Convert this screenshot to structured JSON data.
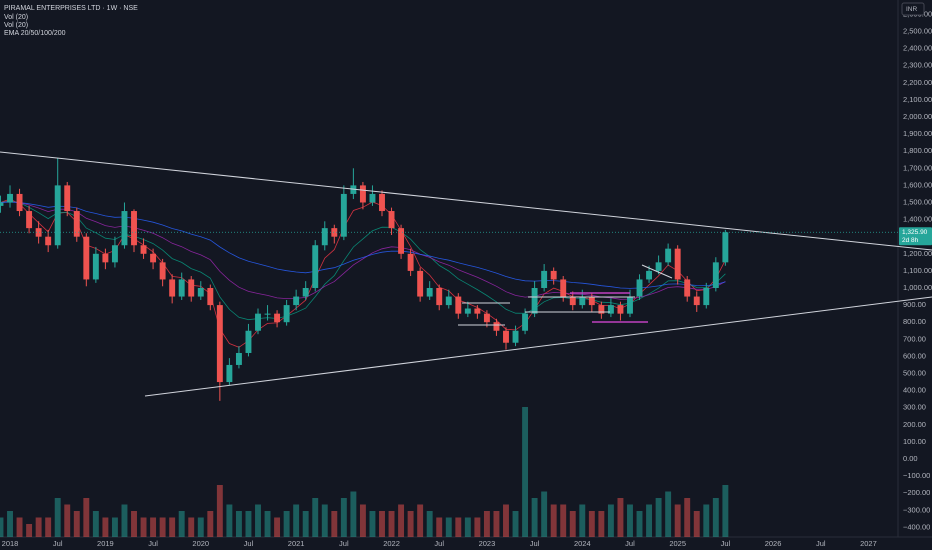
{
  "chart_data": {
    "type": "candlestick",
    "title": "PIRAMAL ENTERPRISES LTD · 1W · NSE",
    "indicators": [
      "Vol (20)",
      "Vol (20)",
      "EMA 20/50/100/200"
    ],
    "currency": "INR",
    "price_label": "1,325.90",
    "countdown": "2d 8h",
    "up_color": "#26a69a",
    "down_color": "#ef5350",
    "grid": false,
    "x": [
      2017.9,
      2018.0,
      2018.1,
      2018.2,
      2018.3,
      2018.4,
      2018.5,
      2018.6,
      2018.7,
      2018.8,
      2018.9,
      2019.0,
      2019.1,
      2019.2,
      2019.3,
      2019.4,
      2019.5,
      2019.6,
      2019.7,
      2019.8,
      2019.9,
      2020.0,
      2020.1,
      2020.2,
      2020.3,
      2020.4,
      2020.5,
      2020.6,
      2020.7,
      2020.8,
      2020.9,
      2021.0,
      2021.1,
      2021.2,
      2021.3,
      2021.4,
      2021.5,
      2021.6,
      2021.7,
      2021.8,
      2021.9,
      2022.0,
      2022.1,
      2022.2,
      2022.3,
      2022.4,
      2022.5,
      2022.6,
      2022.7,
      2022.8,
      2022.9,
      2023.0,
      2023.1,
      2023.2,
      2023.3,
      2023.4,
      2023.5,
      2023.6,
      2023.7,
      2023.8,
      2023.9,
      2024.0,
      2024.1,
      2024.2,
      2024.3,
      2024.4,
      2024.5,
      2024.6,
      2024.7,
      2024.8,
      2024.9,
      2025.0,
      2025.1,
      2025.2,
      2025.3,
      2025.4,
      2025.5
    ],
    "open": [
      1480,
      1500,
      1550,
      1450,
      1350,
      1300,
      1250,
      1600,
      1450,
      1300,
      1050,
      1200,
      1150,
      1250,
      1450,
      1250,
      1200,
      1150,
      1050,
      950,
      1050,
      950,
      1000,
      900,
      450,
      550,
      620,
      750,
      850,
      850,
      800,
      900,
      950,
      1000,
      1250,
      1350,
      1300,
      1550,
      1600,
      1500,
      1550,
      1450,
      1350,
      1200,
      1100,
      950,
      1000,
      900,
      950,
      850,
      880,
      850,
      800,
      750,
      680,
      750,
      850,
      1000,
      1100,
      1050,
      950,
      900,
      950,
      900,
      850,
      900,
      850,
      950,
      1050,
      1100,
      1150,
      1230,
      1050,
      950,
      900,
      1000,
      1150
    ],
    "high": [
      1540,
      1600,
      1580,
      1480,
      1390,
      1340,
      1760,
      1620,
      1470,
      1320,
      1240,
      1230,
      1300,
      1500,
      1460,
      1290,
      1230,
      1170,
      1080,
      1090,
      1070,
      1040,
      1020,
      920,
      590,
      660,
      790,
      880,
      900,
      870,
      930,
      990,
      1040,
      1280,
      1390,
      1370,
      1600,
      1700,
      1620,
      1600,
      1570,
      1470,
      1370,
      1230,
      1120,
      1040,
      1020,
      990,
      970,
      920,
      900,
      870,
      820,
      770,
      780,
      880,
      1040,
      1140,
      1120,
      1070,
      980,
      990,
      970,
      920,
      940,
      920,
      990,
      1080,
      1130,
      1190,
      1260,
      1250,
      1070,
      980,
      1030,
      1180,
      1340
    ],
    "low": [
      1440,
      1470,
      1420,
      1320,
      1260,
      1210,
      1230,
      1420,
      1270,
      1010,
      1030,
      1110,
      1120,
      1230,
      1210,
      1170,
      1110,
      1010,
      910,
      930,
      920,
      930,
      870,
      340,
      430,
      530,
      600,
      730,
      810,
      770,
      780,
      870,
      930,
      980,
      1220,
      1260,
      1280,
      1520,
      1460,
      1480,
      1420,
      1310,
      1170,
      1070,
      920,
      930,
      870,
      880,
      820,
      830,
      820,
      770,
      720,
      640,
      660,
      730,
      830,
      980,
      1020,
      920,
      870,
      880,
      860,
      820,
      830,
      810,
      830,
      930,
      1030,
      1080,
      1130,
      1020,
      920,
      860,
      880,
      980,
      1130
    ],
    "close": [
      1500,
      1550,
      1450,
      1350,
      1300,
      1250,
      1600,
      1450,
      1300,
      1050,
      1200,
      1150,
      1250,
      1450,
      1250,
      1200,
      1150,
      1050,
      950,
      1050,
      950,
      1000,
      900,
      450,
      550,
      620,
      750,
      850,
      850,
      800,
      900,
      950,
      1000,
      1250,
      1350,
      1300,
      1550,
      1600,
      1500,
      1550,
      1450,
      1350,
      1200,
      1100,
      950,
      1000,
      900,
      950,
      850,
      880,
      850,
      800,
      750,
      680,
      750,
      850,
      1000,
      1100,
      1050,
      950,
      900,
      950,
      900,
      850,
      900,
      850,
      950,
      1050,
      1100,
      1150,
      1230,
      1050,
      950,
      900,
      1000,
      1150,
      1325.9
    ],
    "volume": [
      3,
      4,
      3,
      2,
      3,
      3,
      6,
      5,
      4,
      6,
      4,
      3,
      3,
      5,
      4,
      3,
      3,
      3,
      3,
      4,
      3,
      3,
      4,
      8,
      5,
      4,
      4,
      5,
      4,
      3,
      4,
      5,
      4,
      6,
      5,
      4,
      6,
      7,
      5,
      4,
      4,
      4,
      5,
      4,
      5,
      4,
      3,
      3,
      3,
      3,
      3,
      4,
      4,
      5,
      4,
      20,
      6,
      7,
      5,
      5,
      4,
      5,
      4,
      4,
      5,
      6,
      5,
      4,
      5,
      6,
      7,
      5,
      6,
      4,
      5,
      6,
      8
    ],
    "xlim": [
      2017.895,
      2027.31
    ],
    "xticks": [
      {
        "value": 2018,
        "label": "2018"
      },
      {
        "value": 2018.5,
        "label": "Jul"
      },
      {
        "value": 2019,
        "label": "2019"
      },
      {
        "value": 2019.5,
        "label": "Jul"
      },
      {
        "value": 2020,
        "label": "2020"
      },
      {
        "value": 2020.5,
        "label": "Jul"
      },
      {
        "value": 2021,
        "label": "2021"
      },
      {
        "value": 2021.5,
        "label": "Jul"
      },
      {
        "value": 2022,
        "label": "2022"
      },
      {
        "value": 2022.5,
        "label": "Jul"
      },
      {
        "value": 2023,
        "label": "2023"
      },
      {
        "value": 2023.5,
        "label": "Jul"
      },
      {
        "value": 2024,
        "label": "2024"
      },
      {
        "value": 2024.5,
        "label": "Jul"
      },
      {
        "value": 2025,
        "label": "2025"
      },
      {
        "value": 2025.5,
        "label": "Jul"
      },
      {
        "value": 2026,
        "label": "2026"
      },
      {
        "value": 2026.5,
        "label": "Jul"
      },
      {
        "value": 2027,
        "label": "2027"
      }
    ],
    "ylim": [
      -456,
      2684
    ],
    "yticks": [
      {
        "value": 2600,
        "label": "2,600.00"
      },
      {
        "value": 2500,
        "label": "2,500.00"
      },
      {
        "value": 2400,
        "label": "2,400.00"
      },
      {
        "value": 2300,
        "label": "2,300.00"
      },
      {
        "value": 2200,
        "label": "2,200.00"
      },
      {
        "value": 2100,
        "label": "2,100.00"
      },
      {
        "value": 2000,
        "label": "2,000.00"
      },
      {
        "value": 1900,
        "label": "1,900.00"
      },
      {
        "value": 1800,
        "label": "1,800.00"
      },
      {
        "value": 1700,
        "label": "1,700.00"
      },
      {
        "value": 1600,
        "label": "1,600.00"
      },
      {
        "value": 1500,
        "label": "1,500.00"
      },
      {
        "value": 1400,
        "label": "1,400.00"
      },
      {
        "value": 1300,
        "label": "1,300.00"
      },
      {
        "value": 1200,
        "label": "1,200.00"
      },
      {
        "value": 1100,
        "label": "1,100.00"
      },
      {
        "value": 1000,
        "label": "1,000.00"
      },
      {
        "value": 900,
        "label": "900.00"
      },
      {
        "value": 800,
        "label": "800.00"
      },
      {
        "value": 700,
        "label": "700.00"
      },
      {
        "value": 600,
        "label": "600.00"
      },
      {
        "value": 500,
        "label": "500.00"
      },
      {
        "value": 400,
        "label": "400.00"
      },
      {
        "value": 300,
        "label": "300.00"
      },
      {
        "value": 200,
        "label": "200.00"
      },
      {
        "value": 100,
        "label": "100.00"
      },
      {
        "value": 0,
        "label": "0.00"
      },
      {
        "value": -100,
        "label": "−100.00"
      },
      {
        "value": -200,
        "label": "−200.00"
      },
      {
        "value": -300,
        "label": "−300.00"
      },
      {
        "value": -400,
        "label": "−400.00"
      }
    ]
  }
}
